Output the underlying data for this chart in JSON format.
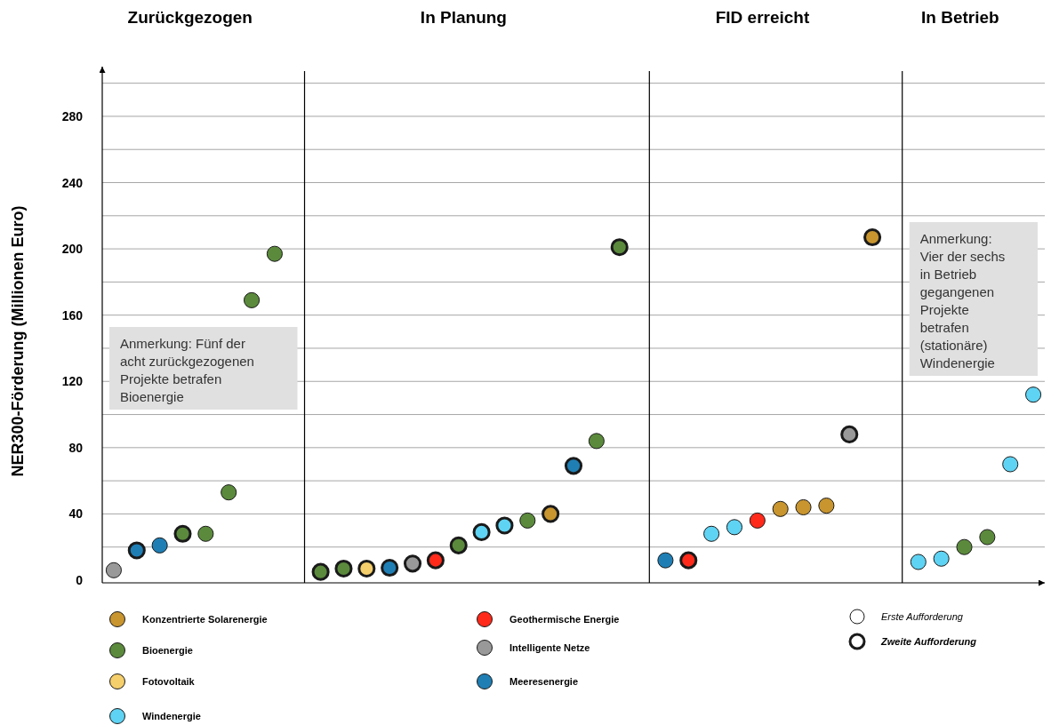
{
  "chart_data": {
    "type": "scatter",
    "ylabel": "NER300-Förderung (Millionen Euro)",
    "categories": [
      null,
      null,
      null,
      null,
      null,
      null,
      null,
      null,
      null,
      null,
      null,
      null,
      null,
      null,
      null,
      null,
      null,
      null,
      null,
      null,
      null,
      null,
      null,
      null,
      null,
      null,
      null,
      null,
      null,
      null,
      null,
      null,
      null,
      null,
      null,
      null,
      null,
      null,
      null,
      null,
      null
    ],
    "ylim": [
      0,
      310
    ],
    "yticks": [
      0,
      {
        "value": 20,
        "label": null
      },
      40,
      {
        "value": 60,
        "label": null
      },
      80,
      {
        "value": 100,
        "label": null
      },
      120,
      {
        "value": 140,
        "label": null
      },
      160,
      {
        "value": 180,
        "label": null
      },
      200,
      {
        "value": 220,
        "label": null
      },
      240,
      {
        "value": 260,
        "label": null
      },
      280,
      {
        "value": 300,
        "label": null
      }
    ],
    "grid": "y",
    "tick_labels": "y",
    "legend": "bottom",
    "marker": "circle",
    "annotations": [
      "Zurückgezogen",
      "In Planung",
      "FID erreicht",
      "In Betrieb",
      "Anmerkung: Fünf der acht zurückgezogenen Projekte betrafen Bioenergie",
      "Anmerkung: Vier der sechs in Betrieb gegangenen Projekte betrafen (stationäre) Windenergie",
      "Erste Aufforderung",
      "Zweite Aufforderung"
    ],
    "series": [
      {
        "values": [
          6,
          null,
          21,
          null,
          28,
          53,
          169,
          197,
          null,
          null,
          null,
          null,
          null,
          null,
          null,
          null,
          null,
          null,
          36,
          null,
          null,
          84,
          null,
          null,
          12,
          null,
          28,
          32,
          36,
          43,
          44,
          45,
          null,
          null,
          null,
          11,
          13,
          20,
          26,
          70,
          112
        ],
        "colors": [
          "#999999",
          null,
          "#1f7fb5",
          null,
          "#5b8a3c",
          "#5b8a3c",
          "#5b8a3c",
          "#5b8a3c",
          null,
          null,
          null,
          null,
          null,
          null,
          null,
          null,
          null,
          null,
          "#5b8a3c",
          null,
          null,
          "#5b8a3c",
          null,
          null,
          "#1f7fb5",
          null,
          "#5fd3f3",
          "#5fd3f3",
          "#ff2a1a",
          "#c8952e",
          "#c8952e",
          "#c8952e",
          null,
          null,
          null,
          "#5fd3f3",
          "#5fd3f3",
          "#5b8a3c",
          "#5b8a3c",
          "#5fd3f3",
          "#5fd3f3"
        ]
      },
      {
        "values": [
          null,
          18,
          null,
          28,
          null,
          null,
          null,
          null,
          null,
          5,
          7,
          7,
          7.5,
          10,
          12,
          21,
          29,
          33,
          null,
          40,
          69,
          null,
          201,
          null,
          null,
          12,
          null,
          null,
          null,
          null,
          null,
          null,
          88,
          207,
          null,
          null,
          null,
          null,
          null,
          null,
          null
        ],
        "colors": [
          null,
          "#1f7fb5",
          null,
          "#5b8a3c",
          null,
          null,
          null,
          null,
          null,
          "#5b8a3c",
          "#5b8a3c",
          "#f5cf6b",
          "#1f7fb5",
          "#999999",
          "#ff2a1a",
          "#5b8a3c",
          "#5fd3f3",
          "#5fd3f3",
          null,
          "#c8952e",
          "#1f7fb5",
          null,
          "#5b8a3c",
          null,
          null,
          "#ff2a1a",
          null,
          null,
          null,
          null,
          null,
          null,
          "#999999",
          "#c8952e",
          null,
          null,
          null,
          null,
          null,
          null,
          null
        ]
      },
      {
        "name": "Konzentrierte Solarenergie",
        "color": "#c8952e",
        "values": [
          null,
          null,
          null,
          null,
          null,
          null,
          null,
          null,
          null,
          null,
          null,
          null,
          null,
          null,
          null,
          null,
          null,
          null,
          null,
          null,
          null,
          null,
          null,
          null,
          null,
          null,
          null,
          null,
          null,
          null,
          null,
          null,
          null,
          null,
          null,
          null,
          null,
          null,
          null,
          null,
          null
        ]
      },
      {
        "name": "Bioenergie",
        "color": "#5b8a3c",
        "values": [
          null,
          null,
          null,
          null,
          null,
          null,
          null,
          null,
          null,
          null,
          null,
          null,
          null,
          null,
          null,
          null,
          null,
          null,
          null,
          null,
          null,
          null,
          null,
          null,
          null,
          null,
          null,
          null,
          null,
          null,
          null,
          null,
          null,
          null,
          null,
          null,
          null,
          null,
          null,
          null,
          null
        ]
      },
      {
        "name": "Fotovoltaik",
        "color": "#f5cf6b",
        "values": [
          null,
          null,
          null,
          null,
          null,
          null,
          null,
          null,
          null,
          null,
          null,
          null,
          null,
          null,
          null,
          null,
          null,
          null,
          null,
          null,
          null,
          null,
          null,
          null,
          null,
          null,
          null,
          null,
          null,
          null,
          null,
          null,
          null,
          null,
          null,
          null,
          null,
          null,
          null,
          null,
          null
        ]
      },
      {
        "name": "Windenergie",
        "color": "#5fd3f3",
        "values": [
          null,
          null,
          null,
          null,
          null,
          null,
          null,
          null,
          null,
          null,
          null,
          null,
          null,
          null,
          null,
          null,
          null,
          null,
          null,
          null,
          null,
          null,
          null,
          null,
          null,
          null,
          null,
          null,
          null,
          null,
          null,
          null,
          null,
          null,
          null,
          null,
          null,
          null,
          null,
          null,
          null
        ]
      },
      {
        "name": "Geothermische Energie",
        "color": "#ff2a1a",
        "values": [
          null,
          null,
          null,
          null,
          null,
          null,
          null,
          null,
          null,
          null,
          null,
          null,
          null,
          null,
          null,
          null,
          null,
          null,
          null,
          null,
          null,
          null,
          null,
          null,
          null,
          null,
          null,
          null,
          null,
          null,
          null,
          null,
          null,
          null,
          null,
          null,
          null,
          null,
          null,
          null,
          null
        ]
      },
      {
        "name": "Intelligente Netze",
        "color": "#999999",
        "values": [
          null,
          null,
          null,
          null,
          null,
          null,
          null,
          null,
          null,
          null,
          null,
          null,
          null,
          null,
          null,
          null,
          null,
          null,
          null,
          null,
          null,
          null,
          null,
          null,
          null,
          null,
          null,
          null,
          null,
          null,
          null,
          null,
          null,
          null,
          null,
          null,
          null,
          null,
          null,
          null,
          null
        ]
      },
      {
        "name": "Meeresenergie",
        "color": "#1f7fb5",
        "values": [
          null,
          null,
          null,
          null,
          null,
          null,
          null,
          null,
          null,
          null,
          null,
          null,
          null,
          null,
          null,
          null,
          null,
          null,
          null,
          null,
          null,
          null,
          null,
          null,
          null,
          null,
          null,
          null,
          null,
          null,
          null,
          null,
          null,
          null,
          null,
          null,
          null,
          null,
          null,
          null,
          null
        ]
      }
    ]
  }
}
